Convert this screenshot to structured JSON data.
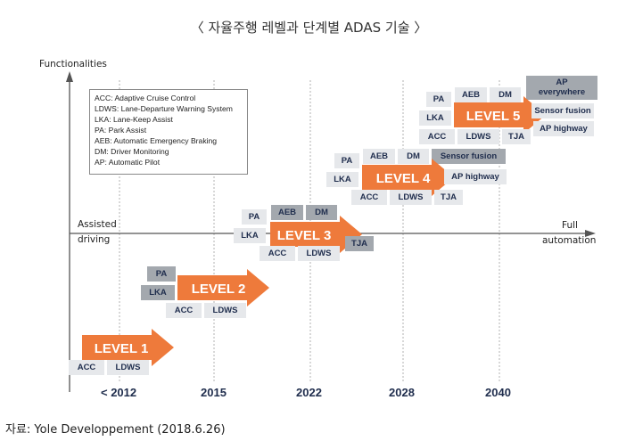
{
  "title": "〈 자율주행 레벨과 단계별 ADAS 기술 〉",
  "axes": {
    "y_label": "Functionalities",
    "x_left_line1": "Assisted",
    "x_left_line2": "driving",
    "x_right_line1": "Full",
    "x_right_line2": "automation"
  },
  "years": [
    "< 2012",
    "2015",
    "2022",
    "2028",
    "2040"
  ],
  "legend": [
    "ACC: Adaptive Cruise Control",
    "LDWS: Lane-Departure Warning System",
    "LKA: Lane-Keep Assist",
    "PA: Park Assist",
    "AEB: Automatic Emergency Braking",
    "DM: Driver Monitoring",
    "AP: Automatic Pilot"
  ],
  "levels": {
    "l1": {
      "label": "LEVEL 1",
      "acc": "ACC",
      "ldws": "LDWS"
    },
    "l2": {
      "label": "LEVEL 2",
      "pa": "PA",
      "lka": "LKA",
      "acc": "ACC",
      "ldws": "LDWS"
    },
    "l3": {
      "label": "LEVEL 3",
      "pa": "PA",
      "aeb": "AEB",
      "dm": "DM",
      "lka": "LKA",
      "tja": "TJA",
      "acc": "ACC",
      "ldws": "LDWS"
    },
    "l4": {
      "label": "LEVEL 4",
      "pa": "PA",
      "aeb": "AEB",
      "dm": "DM",
      "sensor": "Sensor fusion",
      "lka": "LKA",
      "ap_highway": "AP highway",
      "acc": "ACC",
      "ldws": "LDWS",
      "tja": "TJA"
    },
    "l5": {
      "label": "LEVEL 5",
      "pa": "PA",
      "aeb": "AEB",
      "dm": "DM",
      "ap_every_1": "AP",
      "ap_every_2": "everywhere",
      "lka": "LKA",
      "sensor": "Sensor fusion",
      "acc": "ACC",
      "ldws": "LDWS",
      "tja": "TJA",
      "ap_highway": "AP highway"
    }
  },
  "source": "자료: Yole Developpement (2018.6.26)",
  "colors": {
    "arrow": "#ee7a3b",
    "box_light": "#e6e8eb",
    "box_dark": "#a3a8ae",
    "text": "#1f2d4d"
  }
}
